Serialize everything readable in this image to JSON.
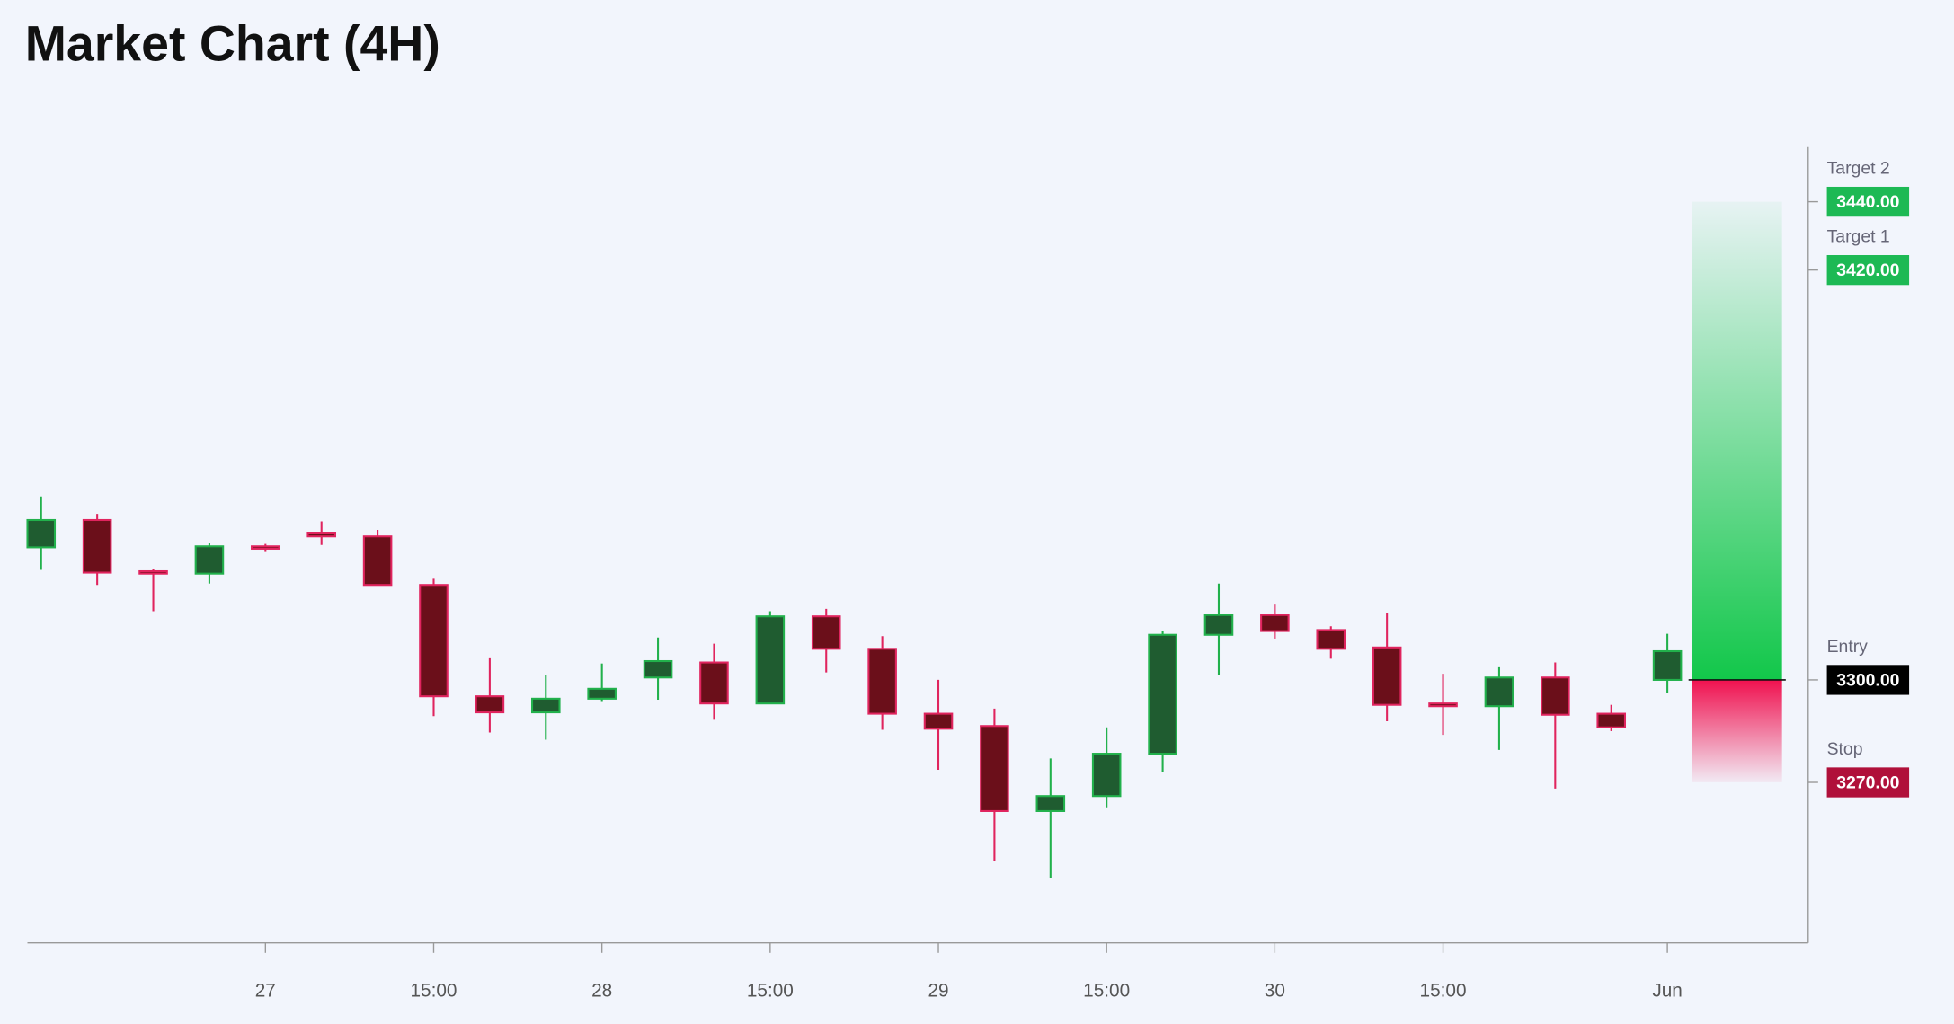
{
  "chart_data": {
    "type": "candlestick",
    "title": "Market Chart (4H)",
    "categories": [
      null,
      null,
      null,
      null,
      "27",
      null,
      null,
      "15:00",
      null,
      null,
      "28",
      null,
      null,
      "15:00",
      null,
      null,
      "29",
      null,
      null,
      "15:00",
      null,
      null,
      "30",
      null,
      null,
      "15:00",
      null,
      null,
      null,
      "Jun"
    ],
    "open": [
      3338.8,
      3346.8,
      3331.8,
      3331.1,
      3339.1,
      3343.1,
      3342.0,
      3327.8,
      3295.2,
      3290.5,
      3294.5,
      3300.7,
      3305.1,
      3293.1,
      3318.6,
      3309.1,
      3290.1,
      3286.5,
      3261.6,
      3266.0,
      3278.4,
      3313.2,
      3319.0,
      3314.6,
      3309.5,
      3293.1,
      3292.3,
      3300.7,
      3290.1,
      3300.0
    ],
    "high": [
      3353.7,
      3348.6,
      3332.5,
      3340.2,
      3339.8,
      3346.4,
      3343.9,
      3329.6,
      3306.6,
      3301.5,
      3304.8,
      3312.4,
      3310.6,
      3320.1,
      3320.8,
      3312.8,
      3300.0,
      3291.6,
      3277.0,
      3286.1,
      3314.3,
      3328.2,
      3322.3,
      3315.7,
      3319.7,
      3301.8,
      3303.7,
      3305.1,
      3292.7,
      3313.5
    ],
    "low": [
      3332.2,
      3327.8,
      3320.1,
      3328.2,
      3337.7,
      3339.5,
      3327.8,
      3289.4,
      3284.6,
      3282.5,
      3293.8,
      3294.2,
      3288.3,
      3293.1,
      3302.2,
      3285.4,
      3273.7,
      3247.0,
      3241.9,
      3262.7,
      3272.9,
      3301.5,
      3312.1,
      3306.2,
      3287.9,
      3283.9,
      3279.5,
      3268.2,
      3285.0,
      3296.3
    ],
    "close": [
      3346.8,
      3331.4,
      3331.1,
      3339.1,
      3338.4,
      3342.0,
      3327.8,
      3295.2,
      3290.5,
      3294.5,
      3297.4,
      3305.5,
      3293.1,
      3318.6,
      3309.1,
      3290.1,
      3285.7,
      3261.6,
      3266.0,
      3278.4,
      3313.2,
      3319.0,
      3314.3,
      3309.1,
      3292.7,
      3292.3,
      3300.7,
      3289.8,
      3286.1,
      3308.4
    ],
    "up_color": "#1f5c30",
    "up_edge": "#22b14c",
    "down_color": "#6b0f1a",
    "down_edge": "#e0245e",
    "ylim": [
      3223,
      3456
    ],
    "levels": [
      {
        "name": "Target 2",
        "value": 3440,
        "label": "3440.00",
        "color": "#1db954"
      },
      {
        "name": "Target 1",
        "value": 3420,
        "label": "3420.00",
        "color": "#1db954"
      },
      {
        "name": "Entry",
        "value": 3300,
        "label": "3300.00",
        "color": "#000000"
      },
      {
        "name": "Stop",
        "value": 3270,
        "label": "3270.00",
        "color": "#b0103a"
      }
    ]
  }
}
